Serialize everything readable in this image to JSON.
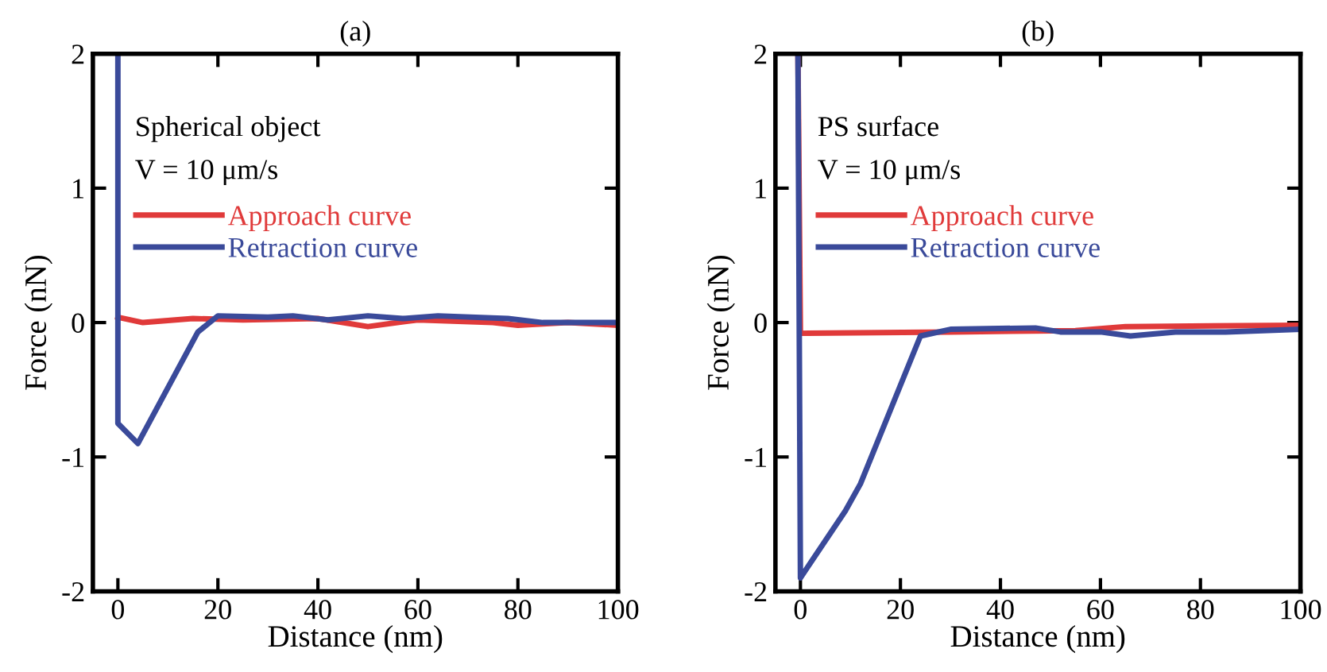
{
  "chart_data": [
    {
      "type": "line",
      "title": "(a)",
      "xlabel": "Distance (nm)",
      "ylabel": "Force (nN)",
      "xlim": [
        -5,
        100
      ],
      "xticks": [
        0,
        20,
        40,
        60,
        80,
        100
      ],
      "ylim": [
        -2,
        2
      ],
      "yticks": [
        -2,
        -1,
        0,
        1,
        2
      ],
      "grid": false,
      "legend": "top left",
      "annotations": [
        "Spherical object",
        "V = 10 μm/s"
      ],
      "series": [
        {
          "name": "Approach curve",
          "color": "#e03a3a",
          "x": [
            0,
            5,
            15,
            25,
            40,
            50,
            60,
            75,
            80,
            90,
            100
          ],
          "values": [
            0.04,
            0.0,
            0.03,
            0.02,
            0.03,
            -0.03,
            0.02,
            0.0,
            -0.02,
            0.0,
            -0.02
          ]
        },
        {
          "name": "Retraction curve",
          "color": "#3a4a9a",
          "x": [
            0,
            0,
            4,
            16,
            20,
            30,
            35,
            42,
            50,
            57,
            64,
            78,
            85,
            100
          ],
          "values": [
            2,
            -0.75,
            -0.9,
            -0.07,
            0.05,
            0.04,
            0.05,
            0.02,
            0.05,
            0.03,
            0.05,
            0.03,
            0.0,
            0.0
          ]
        }
      ]
    },
    {
      "type": "line",
      "title": "(b)",
      "xlabel": "Distance (nm)",
      "ylabel": "Force (nN)",
      "xlim": [
        -5,
        100
      ],
      "xticks": [
        0,
        20,
        40,
        60,
        80,
        100
      ],
      "ylim": [
        -2,
        2
      ],
      "yticks": [
        -2,
        -1,
        0,
        1,
        2
      ],
      "grid": false,
      "legend": "top left",
      "annotations": [
        "PS surface",
        "V = 10 μm/s"
      ],
      "series": [
        {
          "name": "Approach curve",
          "color": "#e03a3a",
          "x": [
            -0.5,
            0,
            30,
            55,
            65,
            100
          ],
          "values": [
            2,
            -0.08,
            -0.07,
            -0.06,
            -0.03,
            -0.02
          ]
        },
        {
          "name": "Retraction curve",
          "color": "#3a4a9a",
          "x": [
            -0.5,
            0,
            9,
            12,
            24,
            30,
            47,
            52,
            60,
            66,
            75,
            85,
            100
          ],
          "values": [
            2,
            -1.9,
            -1.4,
            -1.2,
            -0.1,
            -0.05,
            -0.04,
            -0.07,
            -0.07,
            -0.1,
            -0.07,
            -0.07,
            -0.05
          ]
        }
      ]
    }
  ]
}
